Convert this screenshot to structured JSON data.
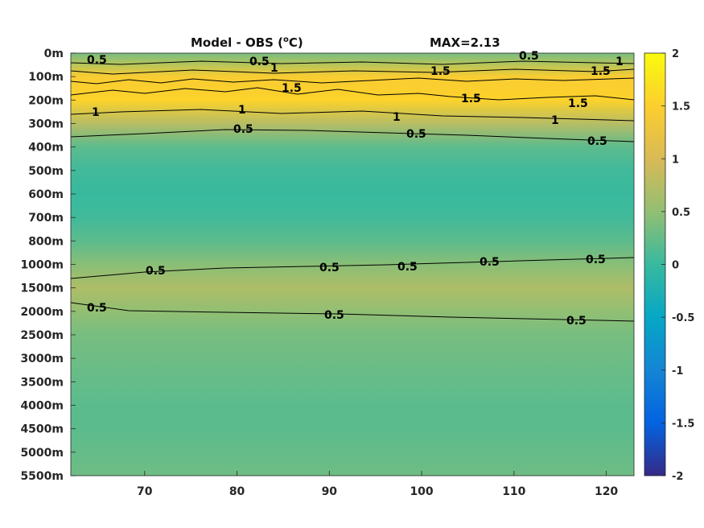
{
  "chart_data": {
    "type": "heatmap",
    "title": "Model - OBS (",
    "title_unit_super": "o",
    "title_unit_tail": "C)",
    "max_label": "MAX=2.13",
    "xlim": [
      62,
      123
    ],
    "x_ticks": [
      70,
      80,
      90,
      100,
      110,
      120
    ],
    "y_ticks": [
      "0m",
      "100m",
      "200m",
      "300m",
      "400m",
      "500m",
      "600m",
      "700m",
      "800m",
      "1000m",
      "1500m",
      "2000m",
      "2500m",
      "3000m",
      "3500m",
      "4000m",
      "4500m",
      "5000m",
      "5500m"
    ],
    "colorbar": {
      "range": [
        -2,
        2
      ],
      "ticks": [
        "2",
        "1.5",
        "1",
        "0.5",
        "0",
        "-0.5",
        "-1",
        "-1.5",
        "-2"
      ],
      "colormap": "parula"
    },
    "depth_profile": [
      {
        "depth": "0m",
        "value": 0.35
      },
      {
        "depth": "100m",
        "value": 1.45
      },
      {
        "depth": "200m",
        "value": 1.55
      },
      {
        "depth": "300m",
        "value": 0.75
      },
      {
        "depth": "400m",
        "value": 0.2
      },
      {
        "depth": "500m",
        "value": 0.05
      },
      {
        "depth": "600m",
        "value": 0.0
      },
      {
        "depth": "700m",
        "value": 0.05
      },
      {
        "depth": "800m",
        "value": 0.2
      },
      {
        "depth": "1000m",
        "value": 0.45
      },
      {
        "depth": "1500m",
        "value": 0.7
      },
      {
        "depth": "2000m",
        "value": 0.5
      },
      {
        "depth": "2500m",
        "value": 0.35
      },
      {
        "depth": "3000m",
        "value": 0.3
      },
      {
        "depth": "3500m",
        "value": 0.25
      },
      {
        "depth": "4000m",
        "value": 0.2
      },
      {
        "depth": "4500m",
        "value": 0.2
      },
      {
        "depth": "5000m",
        "value": 0.25
      },
      {
        "depth": "5500m",
        "value": 0.3
      }
    ],
    "contour_labels": [
      "0.5",
      "1",
      "1.5",
      "1",
      "0.5",
      "0.5",
      "0.5"
    ]
  },
  "colors": {
    "parula": [
      "#352a87",
      "#0363e1",
      "#1485d4",
      "#06a7c6",
      "#38b99e",
      "#92bf73",
      "#d9ba56",
      "#fcce2e",
      "#f9fb0e"
    ]
  }
}
